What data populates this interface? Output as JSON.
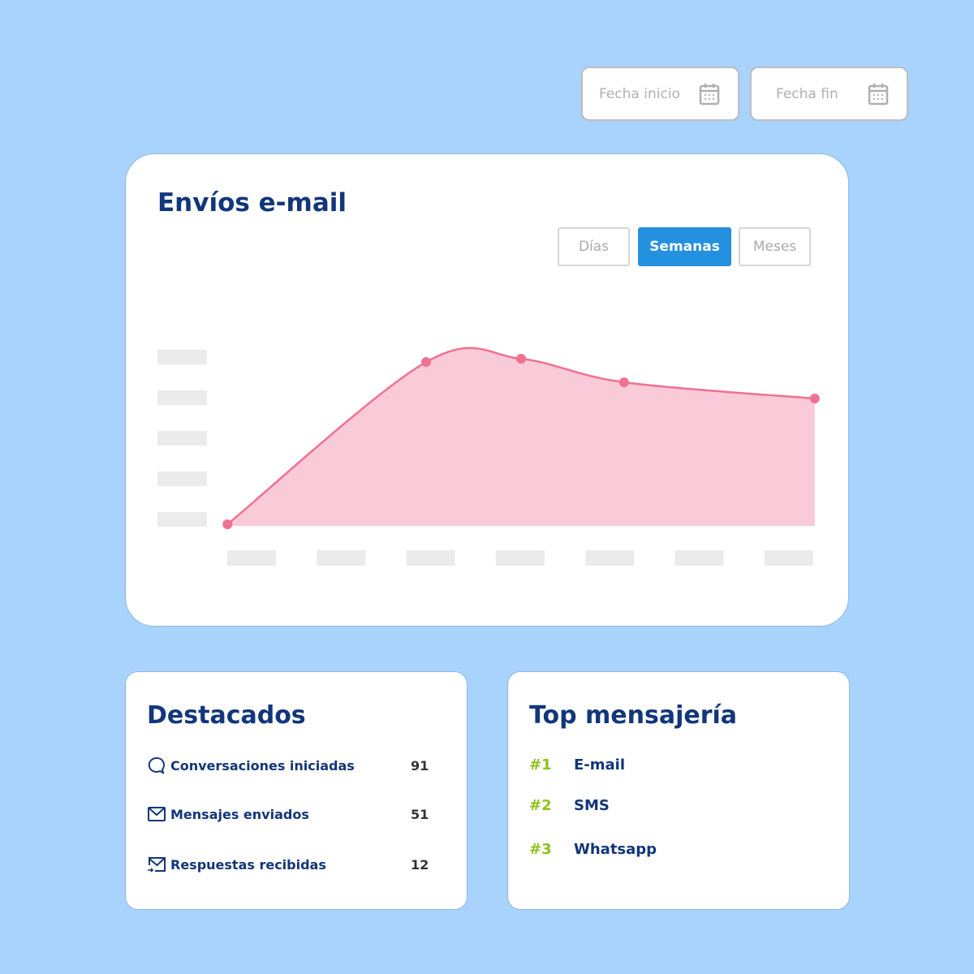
{
  "filters": {
    "start_placeholder": "Fecha inicio",
    "end_placeholder": "Fecha fin",
    "icon": "calendar-icon"
  },
  "chart_card": {
    "title": "Envíos e-mail",
    "tabs": [
      {
        "label": "Días",
        "active": false
      },
      {
        "label": "Semanas",
        "active": true
      },
      {
        "label": "Meses",
        "active": false
      }
    ]
  },
  "chart_data": {
    "type": "area",
    "x_tick_count": 7,
    "y_tick_count": 5,
    "x": [
      -0.27,
      1.95,
      3.01,
      4.16,
      6.29
    ],
    "values": [
      0.04,
      4.04,
      4.12,
      3.54,
      3.14
    ],
    "xlim": [
      -0.3,
      6.3
    ],
    "ylim": [
      0,
      5
    ],
    "grid": false,
    "color": "#f07192",
    "fill": "#f9cad7"
  },
  "destacados": {
    "title": "Destacados",
    "items": [
      {
        "icon": "chat-bubble-icon",
        "label": "Conversaciones iniciadas",
        "value": "91"
      },
      {
        "icon": "envelope-icon",
        "label": "Mensajes enviados",
        "value": "51"
      },
      {
        "icon": "envelope-reply-icon",
        "label": "Respuestas recibidas",
        "value": "12"
      }
    ]
  },
  "top": {
    "title": "Top mensajería",
    "items": [
      {
        "rank": "#1",
        "name": "E-mail"
      },
      {
        "rank": "#2",
        "name": "SMS"
      },
      {
        "rank": "#3",
        "name": "Whatsapp"
      }
    ]
  },
  "colors": {
    "background": "#a8d3fd",
    "primary": "#12367a",
    "accent": "#2490e0",
    "rank": "#8cc21a"
  }
}
